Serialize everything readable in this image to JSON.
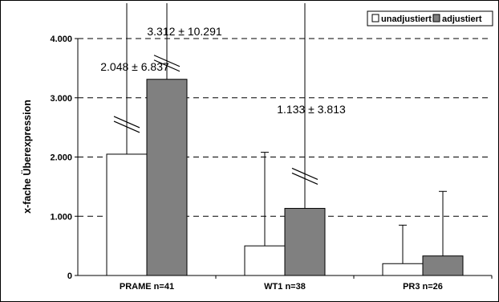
{
  "chart_data": {
    "type": "bar",
    "title": "",
    "xlabel": "",
    "ylabel": "x-fache Überexpression",
    "ylim": [
      0,
      4000
    ],
    "yticks": [
      0,
      1000,
      2000,
      3000,
      4000
    ],
    "ytick_labels": [
      "0",
      "1.000",
      "2.000",
      "3.000",
      "4.000"
    ],
    "grid": "dashed horizontal",
    "legend_position": "top-right",
    "categories": [
      "PRAME n=41",
      "WT1 n=38",
      "PR3 n=26"
    ],
    "series": [
      {
        "name": "unadjustiert",
        "color": "#ffffff",
        "values": [
          2048,
          500,
          200
        ],
        "error_upper": [
          6837,
          1580,
          650
        ]
      },
      {
        "name": "adjustiert",
        "color": "#808080",
        "values": [
          3312,
          1133,
          330
        ],
        "error_upper": [
          10291,
          3813,
          1090
        ]
      }
    ],
    "annotations": [
      {
        "text": "2.048 ± 6.837",
        "category": 0,
        "series": 0
      },
      {
        "text": "3.312 ± 10.291",
        "category": 0,
        "series": 1
      },
      {
        "text": "1.133 ± 3.813",
        "category": 1,
        "series": 1
      }
    ]
  }
}
